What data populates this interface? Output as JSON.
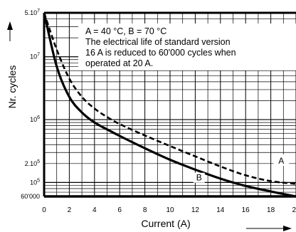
{
  "chart_data": {
    "type": "line",
    "xlabel": "Current (A)",
    "ylabel": "Nr. cycles",
    "x_scale": "linear",
    "y_scale": "log",
    "xlim": [
      0,
      20
    ],
    "ylim": [
      60000,
      50000000
    ],
    "x_ticks": [
      "0",
      "2",
      "4",
      "6",
      "8",
      "10",
      "12",
      "14",
      "16",
      "18",
      "20"
    ],
    "y_ticks": [
      {
        "value": 50000000,
        "mantissa": "5.10",
        "exp": "7"
      },
      {
        "value": 10000000,
        "mantissa": "10",
        "exp": "7"
      },
      {
        "value": 1000000,
        "mantissa": "10",
        "exp": "6"
      },
      {
        "value": 200000,
        "mantissa": "2.10",
        "exp": "5"
      },
      {
        "value": 100000,
        "mantissa": "10",
        "exp": "5"
      },
      {
        "value": 60000,
        "mantissa": "60'000",
        "exp": ""
      }
    ],
    "grid": true,
    "annotation_lines": [
      "A = 40 °C, B = 70 °C",
      "The electrical life of standard version",
      "16 A is reduced to 60'000 cycles when",
      "operated at 20 A."
    ],
    "series": [
      {
        "name": "A",
        "style": "dashed",
        "x": [
          0,
          1,
          2,
          3,
          4,
          5,
          6,
          8,
          10,
          12,
          14,
          16,
          18,
          20
        ],
        "y": [
          50000000,
          13000000,
          4500000,
          2300000,
          1500000,
          1100000,
          850000,
          560000,
          380000,
          260000,
          180000,
          130000,
          105000,
          95000
        ]
      },
      {
        "name": "B",
        "style": "solid",
        "x": [
          0,
          1,
          2,
          3,
          4,
          5,
          6,
          8,
          10,
          12,
          14,
          16,
          18,
          20
        ],
        "y": [
          50000000,
          7000000,
          2300000,
          1300000,
          900000,
          700000,
          550000,
          350000,
          230000,
          160000,
          115000,
          88000,
          72000,
          60000
        ]
      }
    ]
  }
}
